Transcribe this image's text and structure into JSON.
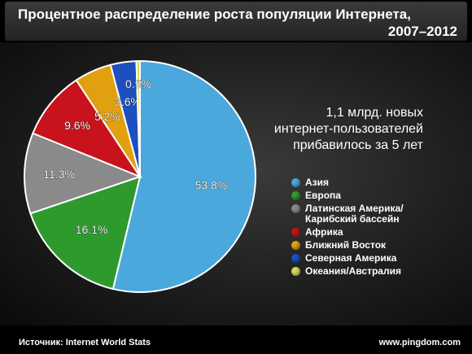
{
  "header": {
    "title_line1": "Процентное распределение роста популяции Интернета,",
    "title_line2": "2007–2012"
  },
  "annotation": {
    "line1": "1,1 млрд. новых",
    "line2": "интернет-пользователей",
    "line3": "прибавилось за 5 лет"
  },
  "chart_data": {
    "type": "pie",
    "title": "Процентное распределение роста популяции Интернета, 2007–2012",
    "slices": [
      {
        "name": "Азия",
        "value": 53.8,
        "label": "53.8%",
        "color": "#4aa8dc"
      },
      {
        "name": "Европа",
        "value": 16.1,
        "label": "16.1%",
        "color": "#2e9a2e"
      },
      {
        "name": "Латинская Америка/ Карибский бассейн",
        "value": 11.3,
        "label": "11.3%",
        "color": "#8a8a8a"
      },
      {
        "name": "Африка",
        "value": 9.6,
        "label": "9.6%",
        "color": "#c8121c"
      },
      {
        "name": "Ближний Восток",
        "value": 5.2,
        "label": "5.2%",
        "color": "#e0a010"
      },
      {
        "name": "Северная Америка",
        "value": 3.6,
        "label": "3.6%",
        "color": "#1d4fbf"
      },
      {
        "name": "Океания/Австралия",
        "value": 0.5,
        "label": "0.5%",
        "color": "#d8d860"
      }
    ],
    "legend_position": "right"
  },
  "legend": {
    "items": [
      {
        "label": "Азия",
        "color": "#4aa8dc"
      },
      {
        "label": "Европа",
        "color": "#2e9a2e"
      },
      {
        "label": "Латинская Америка/\nКарибский бассейн",
        "color": "#8a8a8a"
      },
      {
        "label": "Африка",
        "color": "#c8121c"
      },
      {
        "label": "Ближний Восток",
        "color": "#e0a010"
      },
      {
        "label": "Северная Америка",
        "color": "#1d4fbf"
      },
      {
        "label": "Океания/Австралия",
        "color": "#d8d860"
      }
    ]
  },
  "footer": {
    "source": "Источник: Internet World Stats",
    "site": "www.pingdom.com"
  }
}
